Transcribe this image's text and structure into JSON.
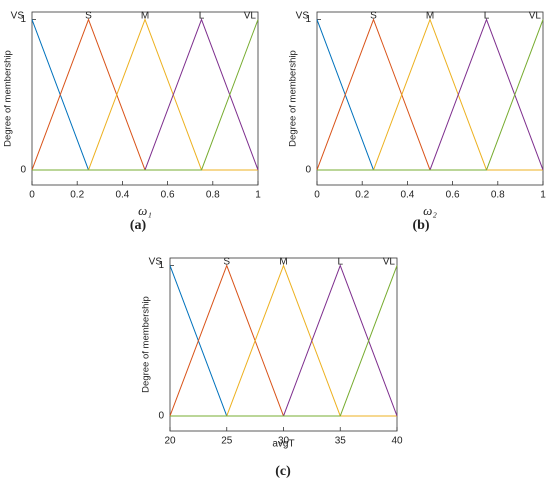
{
  "chart_data": [
    {
      "type": "line",
      "caption": "(a)",
      "xlabel": "ω₁",
      "ylabel": "Degree of membership",
      "x": [
        0,
        0.25,
        0.5,
        0.75,
        1
      ],
      "xlim": [
        0,
        1
      ],
      "ylim": [
        -0.1,
        1.05
      ],
      "xticks": [
        0,
        0.2,
        0.4,
        0.6,
        0.8,
        1
      ],
      "yticks": [
        0,
        1
      ],
      "grid": false,
      "series": [
        {
          "name": "VS",
          "color": "#0072bd",
          "values": [
            1,
            0,
            0,
            0,
            0
          ]
        },
        {
          "name": "S",
          "color": "#d95319",
          "values": [
            0,
            1,
            0,
            0,
            0
          ]
        },
        {
          "name": "M",
          "color": "#edb120",
          "values": [
            0,
            0,
            1,
            0,
            0
          ]
        },
        {
          "name": "L",
          "color": "#7e2f8e",
          "values": [
            0,
            0,
            0,
            1,
            0
          ]
        },
        {
          "name": "VL",
          "color": "#77ac30",
          "values": [
            0,
            0,
            0,
            0,
            1
          ]
        }
      ]
    },
    {
      "type": "line",
      "caption": "(b)",
      "xlabel": "ω₂",
      "ylabel": "Degree of membership",
      "x": [
        0,
        0.25,
        0.5,
        0.75,
        1
      ],
      "xlim": [
        0,
        1
      ],
      "ylim": [
        -0.1,
        1.05
      ],
      "xticks": [
        0,
        0.2,
        0.4,
        0.6,
        0.8,
        1
      ],
      "yticks": [
        0,
        1
      ],
      "grid": false,
      "series": [
        {
          "name": "VS",
          "color": "#0072bd",
          "values": [
            1,
            0,
            0,
            0,
            0
          ]
        },
        {
          "name": "S",
          "color": "#d95319",
          "values": [
            0,
            1,
            0,
            0,
            0
          ]
        },
        {
          "name": "M",
          "color": "#edb120",
          "values": [
            0,
            0,
            1,
            0,
            0
          ]
        },
        {
          "name": "L",
          "color": "#7e2f8e",
          "values": [
            0,
            0,
            0,
            1,
            0
          ]
        },
        {
          "name": "VL",
          "color": "#77ac30",
          "values": [
            0,
            0,
            0,
            0,
            1
          ]
        }
      ]
    },
    {
      "type": "line",
      "caption": "(c)",
      "xlabel": "avgT",
      "ylabel": "Degree of membership",
      "x": [
        20,
        25,
        30,
        35,
        40
      ],
      "xlim": [
        20,
        40
      ],
      "ylim": [
        -0.1,
        1.05
      ],
      "xticks": [
        20,
        25,
        30,
        35,
        40
      ],
      "yticks": [
        0,
        1
      ],
      "grid": false,
      "series": [
        {
          "name": "VS",
          "color": "#0072bd",
          "values": [
            1,
            0,
            0,
            0,
            0
          ]
        },
        {
          "name": "S",
          "color": "#d95319",
          "values": [
            0,
            1,
            0,
            0,
            0
          ]
        },
        {
          "name": "M",
          "color": "#edb120",
          "values": [
            0,
            0,
            1,
            0,
            0
          ]
        },
        {
          "name": "L",
          "color": "#7e2f8e",
          "values": [
            0,
            0,
            0,
            1,
            0
          ]
        },
        {
          "name": "VL",
          "color": "#77ac30",
          "values": [
            0,
            0,
            0,
            0,
            1
          ]
        }
      ]
    }
  ]
}
